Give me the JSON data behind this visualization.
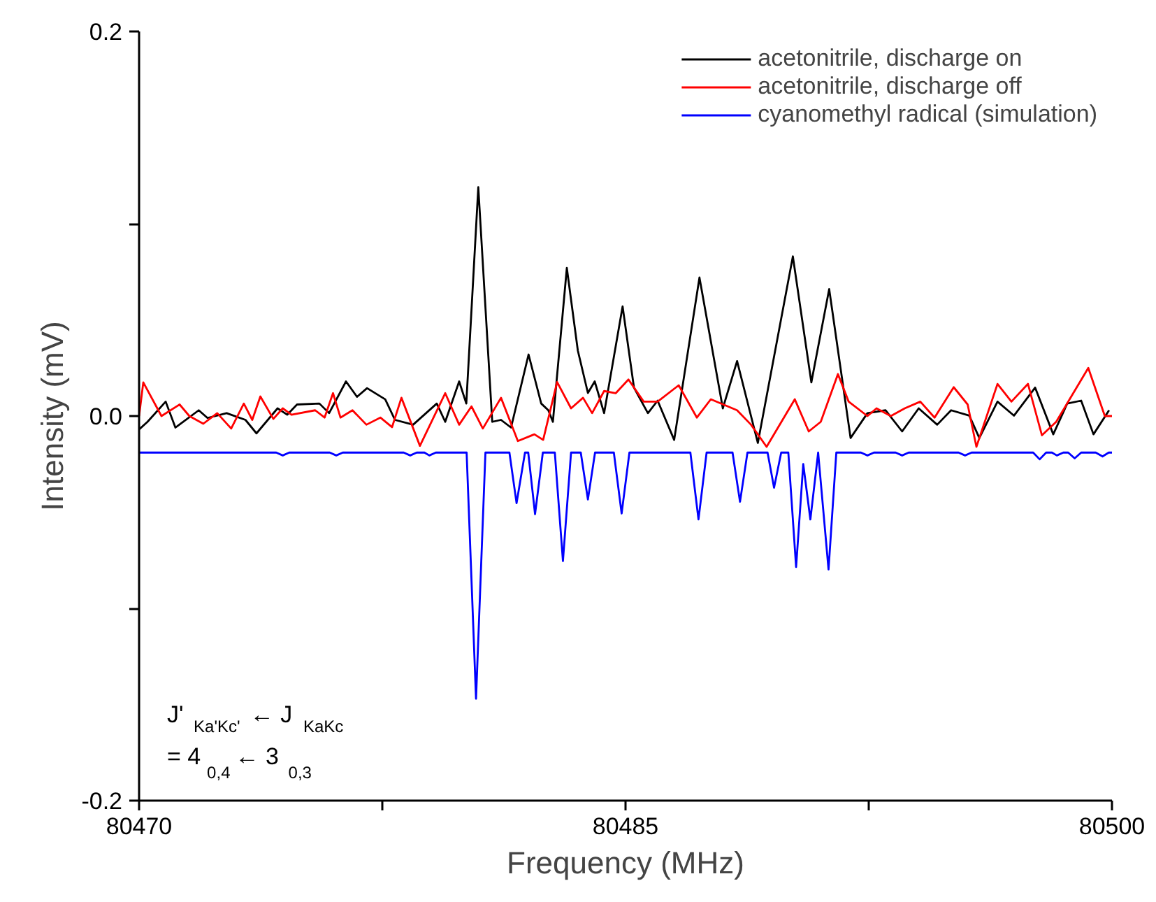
{
  "chart_data": {
    "type": "line",
    "xlabel": "Frequency (MHz)",
    "ylabel": "Intensity (mV)",
    "xlim": [
      80470,
      80500
    ],
    "ylim": [
      -0.2,
      0.2
    ],
    "xticks": [
      80470,
      {
        "value": 80477.5,
        "label": null
      },
      80485,
      {
        "value": 80492.5,
        "label": null
      },
      80500
    ],
    "yticks": [
      "-0.2",
      {
        "value": -0.1,
        "label": null
      },
      {
        "value": 0,
        "label": "0.0"
      },
      {
        "value": 0.1,
        "label": null
      },
      0.2
    ],
    "grid": false,
    "legend": "top right",
    "marker": "none",
    "line_style": "solid",
    "annotations": [
      "J'$_{Ka'Kc'}$ ← J$_{KaKc}$",
      "= 4$_{0,4}$ ← 3$_{0,3}$"
    ],
    "series": [
      {
        "name": "acetonitrile, discharge on",
        "color": "#000000",
        "x": [
          80470,
          80470.26,
          80470.82,
          80471.12,
          80471.84,
          80472.11,
          80472.7,
          80473.28,
          80473.62,
          80474.27,
          80474.57,
          80474.87,
          80475.56,
          80475.86,
          80476.38,
          80476.72,
          80477.03,
          80477.59,
          80477.89,
          80478.45,
          80479.18,
          80479.44,
          80479.87,
          80480.09,
          80480.46,
          80480.89,
          80481.16,
          80481.47,
          80482.01,
          80482.4,
          80482.62,
          80482.76,
          80483.19,
          80483.53,
          80483.84,
          80484.05,
          80484.34,
          80484.91,
          80485.26,
          80485.69,
          80485.99,
          80486.5,
          80487.28,
          80488.0,
          80488.44,
          80489.08,
          80490.16,
          80490.73,
          80491.28,
          80491.94,
          80492.46,
          80493.02,
          80493.53,
          80494.04,
          80494.61,
          80495.04,
          80495.6,
          80495.91,
          80496.47,
          80496.98,
          80497.63,
          80498.19,
          80498.62,
          80499.05,
          80499.43,
          80499.91
        ],
        "values": [
          -0.007,
          -0.003,
          0.0075,
          -0.006,
          0.003,
          -0.001,
          0.0015,
          -0.002,
          -0.009,
          0.004,
          0.0007,
          0.006,
          0.0065,
          0.0015,
          0.018,
          0.01,
          0.0145,
          0.0087,
          -0.002,
          -0.0045,
          0.0065,
          -0.003,
          0.018,
          0.0065,
          0.119,
          -0.003,
          -0.002,
          -0.006,
          0.032,
          0.0065,
          0.003,
          -0.003,
          0.077,
          0.034,
          0.012,
          0.018,
          0.0015,
          0.057,
          0.0148,
          0.0015,
          0.008,
          -0.0124,
          0.072,
          0.004,
          0.0286,
          -0.014,
          0.083,
          0.0175,
          0.066,
          -0.0114,
          0.0015,
          0.003,
          -0.008,
          0.004,
          -0.0045,
          0.003,
          0.0002,
          -0.0114,
          0.0075,
          0.0002,
          0.0148,
          -0.0095,
          0.0065,
          0.008,
          -0.0095,
          0.003
        ]
      },
      {
        "name": "acetonitrile, discharge off",
        "color": "#ff0000",
        "x": [
          80470,
          80470.13,
          80470.69,
          80471.25,
          80471.55,
          80471.98,
          80472.41,
          80472.84,
          80473.23,
          80473.49,
          80473.74,
          80474.14,
          80474.43,
          80474.7,
          80475.43,
          80475.72,
          80475.98,
          80476.21,
          80476.58,
          80477.01,
          80477.44,
          80477.8,
          80478.09,
          80478.66,
          80479.44,
          80479.87,
          80480.25,
          80480.6,
          80481.16,
          80481.68,
          80482.19,
          80482.46,
          80482.89,
          80483.32,
          80483.69,
          80483.97,
          80484.34,
          80484.7,
          80485.09,
          80485.56,
          80485.99,
          80486.64,
          80487.2,
          80487.63,
          80488.44,
          80488.87,
          80489.35,
          80490.22,
          80490.65,
          80491.02,
          80491.55,
          80491.88,
          80492.46,
          80492.74,
          80493.18,
          80493.61,
          80494.09,
          80494.53,
          80495.12,
          80495.55,
          80495.82,
          80496.47,
          80496.9,
          80497.41,
          80497.84,
          80498.28,
          80499.27,
          80499.78,
          80500
        ],
        "values": [
          0,
          0.0175,
          0,
          0.006,
          0,
          -0.004,
          0.0015,
          -0.0065,
          0.0065,
          -0.002,
          0.0102,
          -0.0015,
          0.004,
          0.0007,
          0.003,
          -0.0008,
          0.0119,
          -0.0008,
          0.003,
          -0.0045,
          -0.0008,
          -0.0058,
          0.0095,
          -0.0155,
          0.0119,
          -0.0045,
          0.005,
          -0.0065,
          0.0095,
          -0.013,
          -0.0095,
          -0.0124,
          0.0177,
          0.004,
          0.0095,
          0.0015,
          0.013,
          0.0119,
          0.019,
          0.0075,
          0.0075,
          0.016,
          -0.0008,
          0.0087,
          0.003,
          -0.0045,
          -0.016,
          0.0087,
          -0.008,
          -0.003,
          0.0218,
          0.0075,
          0,
          0.004,
          0,
          0.004,
          0.0075,
          -0.0008,
          0.015,
          0.006,
          -0.016,
          0.0167,
          0.0075,
          0.0167,
          -0.01,
          -0.003,
          0.025,
          0,
          0
        ]
      },
      {
        "name": "cyanomethyl radical (simulation)",
        "color": "#0000ff",
        "x": [
          80470,
          80474.23,
          80474.43,
          80474.63,
          80475.88,
          80476.08,
          80476.28,
          80478.16,
          80478.36,
          80478.56,
          80478.8,
          80478.95,
          80479.15,
          80480.1,
          80480.39,
          80480.68,
          80481.42,
          80481.64,
          80481.9,
          80482.0,
          80482.21,
          80482.45,
          80482.82,
          80483.07,
          80483.32,
          80483.62,
          80483.84,
          80484.06,
          80484.64,
          80484.88,
          80485.12,
          80487.0,
          80487.25,
          80487.5,
          80488.3,
          80488.53,
          80488.76,
          80489.38,
          80489.58,
          80489.8,
          80490.02,
          80490.26,
          80490.48,
          80490.7,
          80490.94,
          80491.26,
          80491.5,
          80492.26,
          80492.46,
          80492.66,
          80493.33,
          80493.53,
          80493.73,
          80495.27,
          80495.47,
          80495.67,
          80497.57,
          80497.77,
          80497.97,
          80498.15,
          80498.3,
          80498.5,
          80498.65,
          80498.85,
          80499.05,
          80499.5,
          80499.71,
          80499.9,
          80500
        ],
        "values": [
          -0.019,
          -0.019,
          -0.0205,
          -0.019,
          -0.019,
          -0.0205,
          -0.019,
          -0.019,
          -0.0205,
          -0.019,
          -0.019,
          -0.0205,
          -0.019,
          -0.019,
          -0.147,
          -0.019,
          -0.019,
          -0.0453,
          -0.019,
          -0.019,
          -0.051,
          -0.019,
          -0.019,
          -0.0754,
          -0.019,
          -0.019,
          -0.0434,
          -0.019,
          -0.019,
          -0.0507,
          -0.019,
          -0.019,
          -0.0538,
          -0.019,
          -0.019,
          -0.0446,
          -0.019,
          -0.019,
          -0.0373,
          -0.019,
          -0.019,
          -0.0785,
          -0.025,
          -0.0538,
          -0.019,
          -0.0798,
          -0.019,
          -0.019,
          -0.0205,
          -0.019,
          -0.019,
          -0.0205,
          -0.019,
          -0.019,
          -0.0205,
          -0.019,
          -0.019,
          -0.0225,
          -0.019,
          -0.019,
          -0.0205,
          -0.019,
          -0.019,
          -0.022,
          -0.019,
          -0.019,
          -0.021,
          -0.019,
          -0.019
        ]
      }
    ]
  }
}
